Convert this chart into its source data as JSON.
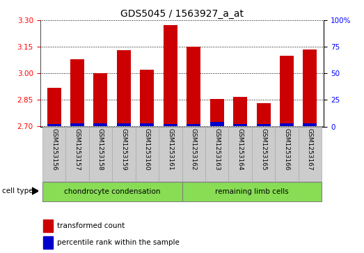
{
  "title": "GDS5045 / 1563927_a_at",
  "categories": [
    "GSM1253156",
    "GSM1253157",
    "GSM1253158",
    "GSM1253159",
    "GSM1253160",
    "GSM1253161",
    "GSM1253162",
    "GSM1253163",
    "GSM1253164",
    "GSM1253165",
    "GSM1253166",
    "GSM1253167"
  ],
  "red_values": [
    2.92,
    3.08,
    3.002,
    3.132,
    3.02,
    3.272,
    3.152,
    2.854,
    2.868,
    2.832,
    3.1,
    3.133
  ],
  "blue_values": [
    2,
    3,
    3,
    3,
    3,
    2,
    2,
    4,
    2,
    2,
    3,
    3
  ],
  "baseline": 2.7,
  "ylim_left": [
    2.7,
    3.3
  ],
  "ylim_right": [
    0,
    100
  ],
  "yticks_left": [
    2.7,
    2.85,
    3.0,
    3.15,
    3.3
  ],
  "yticks_right": [
    0,
    25,
    50,
    75,
    100
  ],
  "group1_label": "chondrocyte condensation",
  "group1_count": 6,
  "group2_label": "remaining limb cells",
  "group2_count": 6,
  "cell_type_label": "cell type",
  "legend_red": "transformed count",
  "legend_blue": "percentile rank within the sample",
  "bar_width": 0.6,
  "bar_color_red": "#cc0000",
  "bar_color_blue": "#0000cc",
  "group_bg": "#88dd55",
  "xticklabel_bg": "#cccccc",
  "title_fontsize": 10,
  "tick_fontsize": 7.5,
  "label_fontsize": 8
}
